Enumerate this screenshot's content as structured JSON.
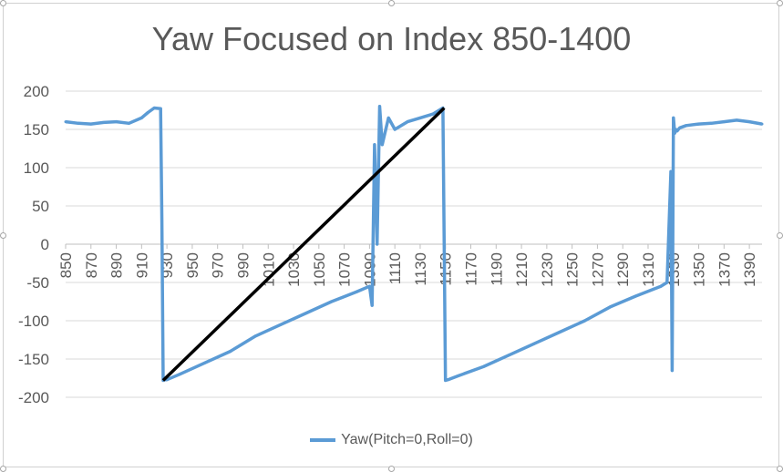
{
  "chart_data": {
    "type": "line",
    "title": "Yaw Focused on Index 850-1400",
    "xlabel": "",
    "ylabel": "",
    "ylim": [
      -200,
      200
    ],
    "yticks": [
      200,
      150,
      100,
      50,
      0,
      -50,
      -100,
      -150,
      -200
    ],
    "xlim": [
      850,
      1400
    ],
    "xticks": [
      850,
      870,
      890,
      910,
      930,
      950,
      970,
      990,
      1010,
      1030,
      1050,
      1070,
      1090,
      1110,
      1130,
      1150,
      1170,
      1190,
      1210,
      1230,
      1250,
      1270,
      1290,
      1310,
      1330,
      1350,
      1370,
      1390
    ],
    "grid": true,
    "legend_position": "bottom",
    "series": [
      {
        "name": "Yaw(Pitch=0,Roll=0)",
        "color": "#5b9bd5",
        "x": [
          850,
          860,
          870,
          880,
          890,
          900,
          910,
          915,
          920,
          925,
          926,
          927,
          928,
          930,
          940,
          960,
          980,
          1000,
          1020,
          1040,
          1060,
          1080,
          1090,
          1092,
          1094,
          1096,
          1098,
          1100,
          1105,
          1110,
          1120,
          1130,
          1140,
          1148,
          1149,
          1150,
          1152,
          1160,
          1180,
          1200,
          1220,
          1240,
          1260,
          1280,
          1300,
          1320,
          1325,
          1328,
          1329,
          1330,
          1331,
          1332,
          1333,
          1335,
          1340,
          1350,
          1360,
          1370,
          1380,
          1390,
          1400
        ],
        "values": [
          160,
          158,
          157,
          159,
          160,
          158,
          165,
          172,
          178,
          177,
          30,
          -178,
          -177,
          -177,
          -170,
          -155,
          -140,
          -120,
          -105,
          -90,
          -75,
          -62,
          -55,
          -80,
          130,
          0,
          180,
          130,
          165,
          150,
          160,
          165,
          170,
          178,
          0,
          -178,
          -177,
          -172,
          -160,
          -145,
          -130,
          -115,
          -100,
          -82,
          -68,
          -55,
          -50,
          95,
          -165,
          165,
          145,
          150,
          148,
          152,
          155,
          157,
          158,
          160,
          162,
          160,
          157
        ]
      }
    ],
    "annotations": [
      {
        "type": "line",
        "color": "#000000",
        "x": [
          927,
          1149
        ],
        "values": [
          -178,
          178
        ]
      }
    ]
  }
}
